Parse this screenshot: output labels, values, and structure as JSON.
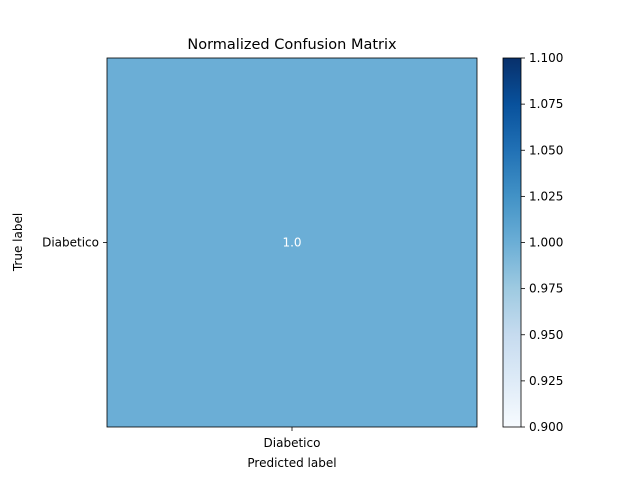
{
  "chart_data": {
    "type": "heatmap",
    "title": "Normalized Confusion Matrix",
    "xlabel": "Predicted label",
    "ylabel": "True label",
    "x_categories": [
      "Diabetico"
    ],
    "y_categories": [
      "Diabetico"
    ],
    "values": [
      [
        1.0
      ]
    ],
    "cell_labels": [
      [
        "1.0"
      ]
    ],
    "cell_label_color": "#ffffff",
    "cell_color": "#6baed6",
    "colormap": "Blues",
    "colorbar": {
      "min": 0.9,
      "max": 1.1,
      "ticks": [
        0.9,
        0.925,
        0.95,
        0.975,
        1.0,
        1.025,
        1.05,
        1.075,
        1.1
      ],
      "tick_labels": [
        "0.900",
        "0.925",
        "0.950",
        "0.975",
        "1.000",
        "1.025",
        "1.050",
        "1.075",
        "1.100"
      ],
      "stops": [
        "#f7fbff",
        "#deebf7",
        "#c6dbef",
        "#9ecae1",
        "#6baed6",
        "#4292c6",
        "#2171b5",
        "#08519c",
        "#08306b"
      ]
    },
    "grid": false
  }
}
